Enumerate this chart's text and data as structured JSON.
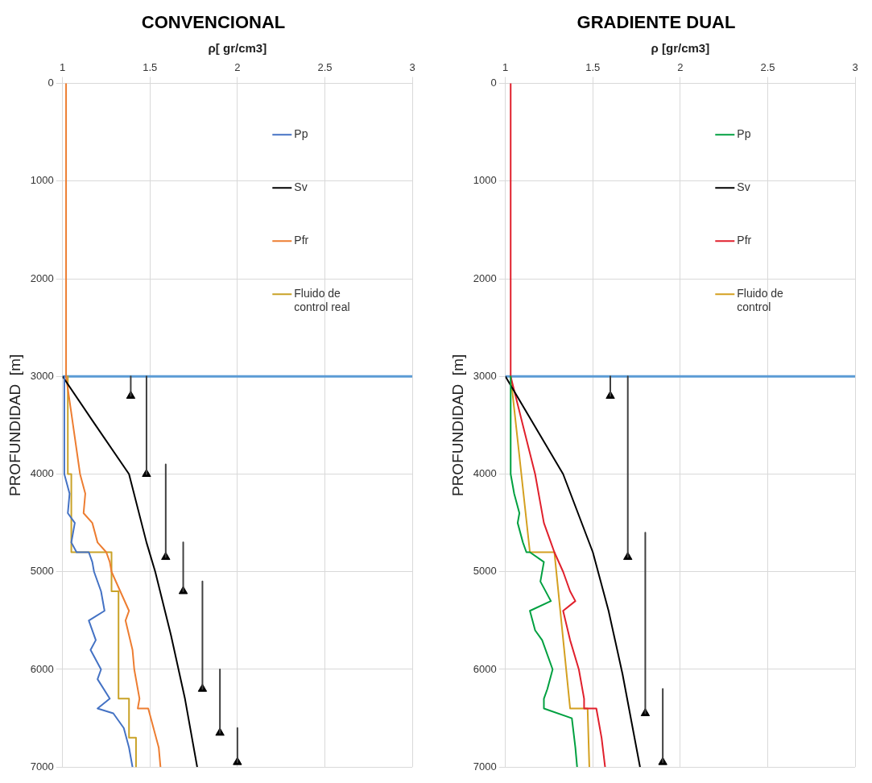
{
  "chart_data": [
    {
      "type": "line",
      "title": "CONVENCIONAL",
      "xlabel": "ρ[ gr/cm3]",
      "ylabel": "PROFUNDIDAD  [m]",
      "xlim": [
        1,
        3
      ],
      "xticks": [
        1,
        1.5,
        2,
        2.5,
        3
      ],
      "ylim": [
        7000,
        0
      ],
      "yticks": [
        0,
        1000,
        2000,
        3000,
        4000,
        5000,
        6000,
        7000
      ],
      "grid": true,
      "legend": "top right",
      "marker": "none",
      "line_style": "solid",
      "ref_lines": [
        {
          "axis": "y",
          "value": 3000,
          "color": "#5b9bd5"
        }
      ],
      "series": [
        {
          "name": "Pp",
          "color": "#4472c4",
          "x": [
            1.01,
            1.01,
            1.04,
            1.03,
            1.07,
            1.05,
            1.08,
            1.15,
            1.17,
            1.18,
            1.22,
            1.24,
            1.15,
            1.19,
            1.16,
            1.22,
            1.2,
            1.27,
            1.2,
            1.29,
            1.35,
            1.38,
            1.4
          ],
          "values": [
            3000,
            4000,
            4200,
            4400,
            4500,
            4700,
            4800,
            4800,
            4900,
            5000,
            5200,
            5400,
            5500,
            5700,
            5800,
            6000,
            6100,
            6300,
            6400,
            6450,
            6600,
            6800,
            7000
          ]
        },
        {
          "name": "Sv",
          "color": "#000000",
          "x": [
            1.0,
            1.17,
            1.38,
            1.48,
            1.53,
            1.62,
            1.7,
            1.77
          ],
          "values": [
            3000,
            3450,
            4000,
            4700,
            5000,
            5650,
            6300,
            7000
          ]
        },
        {
          "name": "Pfr",
          "color": "#ed7d31",
          "x": [
            1.02,
            1.02,
            1.06,
            1.1,
            1.13,
            1.12,
            1.17,
            1.2,
            1.25,
            1.27,
            1.28,
            1.33,
            1.38,
            1.36,
            1.4,
            1.41,
            1.44,
            1.43,
            1.49,
            1.52,
            1.55,
            1.56
          ],
          "values": [
            0,
            3000,
            3500,
            4000,
            4200,
            4400,
            4500,
            4700,
            4800,
            4900,
            5000,
            5200,
            5400,
            5500,
            5800,
            6000,
            6300,
            6400,
            6400,
            6600,
            6800,
            7000
          ]
        },
        {
          "name": "Fluido de control real",
          "color": "#c9a227",
          "x": [
            1.03,
            1.03,
            1.05,
            1.05,
            1.28,
            1.28,
            1.32,
            1.32,
            1.38,
            1.38,
            1.42,
            1.42
          ],
          "values": [
            3000,
            4000,
            4000,
            4800,
            4800,
            5200,
            5200,
            6300,
            6300,
            6700,
            6700,
            7000
          ]
        },
        {
          "color": "#404040",
          "x": [
            1.39,
            1.39,
            null,
            1.48,
            1.48,
            null,
            1.59,
            1.59,
            null,
            1.69,
            1.69,
            null,
            1.8,
            1.8,
            null,
            1.9,
            1.9,
            null,
            2.0,
            2.0
          ],
          "values": [
            3000,
            3200,
            null,
            3000,
            4000,
            null,
            3900,
            4850,
            null,
            4700,
            5200,
            null,
            5100,
            6200,
            null,
            6000,
            6650,
            null,
            6600,
            6950
          ]
        },
        {
          "type": "scatter",
          "marker": "triangle",
          "color": "#000000",
          "x": [
            1.39,
            1.48,
            1.59,
            1.69,
            1.8,
            1.9,
            2.0
          ],
          "values": [
            3200,
            4000,
            4850,
            5200,
            6200,
            6650,
            6950
          ]
        }
      ]
    },
    {
      "type": "line",
      "title": "GRADIENTE DUAL",
      "xlabel": "ρ [gr/cm3]",
      "ylabel": "PROFUNDIDAD  [m]",
      "xlim": [
        1,
        3
      ],
      "xticks": [
        1,
        1.5,
        2,
        2.5,
        3
      ],
      "ylim": [
        7000,
        0
      ],
      "yticks": [
        0,
        1000,
        2000,
        3000,
        4000,
        5000,
        6000,
        7000
      ],
      "grid": true,
      "legend": "top right",
      "marker": "none",
      "line_style": "solid",
      "ref_lines": [
        {
          "axis": "y",
          "value": 3000,
          "color": "#5b9bd5"
        }
      ],
      "series": [
        {
          "name": "Pp",
          "color": "#00a040",
          "x": [
            1.03,
            1.03,
            1.05,
            1.08,
            1.07,
            1.1,
            1.12,
            1.14,
            1.22,
            1.2,
            1.26,
            1.14,
            1.17,
            1.21,
            1.27,
            1.24,
            1.22,
            1.22,
            1.38,
            1.4,
            1.41
          ],
          "values": [
            3000,
            4000,
            4200,
            4400,
            4500,
            4700,
            4800,
            4800,
            4900,
            5100,
            5300,
            5400,
            5600,
            5700,
            6000,
            6200,
            6300,
            6400,
            6500,
            6800,
            7000
          ]
        },
        {
          "name": "Sv",
          "color": "#000000",
          "x": [
            1.0,
            1.33,
            1.5,
            1.59,
            1.67,
            1.77
          ],
          "values": [
            3000,
            4000,
            4800,
            5400,
            6050,
            7000
          ]
        },
        {
          "name": "Pfr",
          "color": "#e0202c",
          "x": [
            1.03,
            1.03,
            1.1,
            1.17,
            1.2,
            1.22,
            1.26,
            1.28,
            1.33,
            1.37,
            1.4,
            1.33,
            1.37,
            1.42,
            1.45,
            1.45,
            1.52,
            1.55,
            1.57
          ],
          "values": [
            0,
            3000,
            3500,
            4000,
            4300,
            4500,
            4700,
            4800,
            5000,
            5200,
            5300,
            5400,
            5700,
            6000,
            6300,
            6400,
            6400,
            6700,
            7000
          ]
        },
        {
          "name": "Fluido de control",
          "color": "#d4a020",
          "x": [
            1.03,
            1.14,
            1.28,
            1.37,
            1.47,
            1.48
          ],
          "values": [
            3000,
            4800,
            4800,
            6400,
            6400,
            7000
          ]
        },
        {
          "color": "#404040",
          "x": [
            1.6,
            1.6,
            null,
            1.7,
            1.7,
            null,
            1.8,
            1.8,
            null,
            1.9,
            1.9
          ],
          "values": [
            3000,
            3200,
            null,
            3000,
            4850,
            null,
            4600,
            6450,
            null,
            6200,
            6950
          ]
        },
        {
          "type": "scatter",
          "marker": "triangle",
          "color": "#000000",
          "x": [
            1.6,
            1.7,
            1.8,
            1.9
          ],
          "values": [
            3200,
            4850,
            6450,
            6950
          ]
        }
      ]
    }
  ]
}
